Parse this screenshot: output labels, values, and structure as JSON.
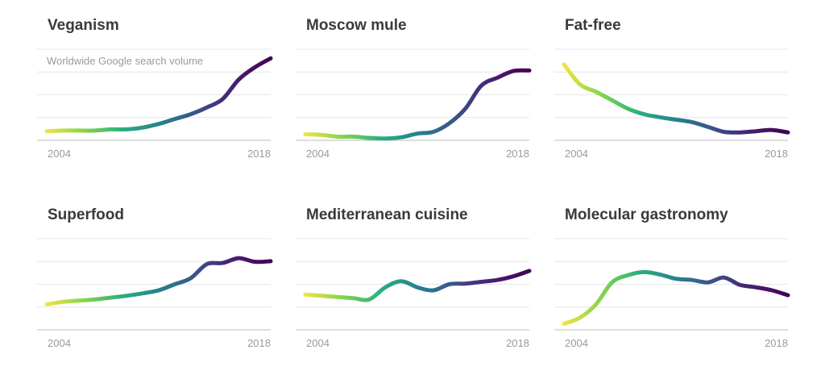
{
  "charts": [
    {
      "title": "Veganism",
      "subtitle": "Worldwide Google search volume",
      "chart_data": {
        "type": "line",
        "x": [
          2004,
          2005,
          2006,
          2007,
          2008,
          2009,
          2010,
          2011,
          2012,
          2013,
          2014,
          2015,
          2016,
          2017,
          2018
        ],
        "values": [
          15,
          16,
          16,
          16,
          18,
          18,
          21,
          27,
          35,
          43,
          54,
          68,
          100,
          120,
          135
        ],
        "ylim": [
          0,
          150
        ],
        "x_tick_labels": [
          "2004",
          "2018"
        ],
        "grid": true,
        "color_scale": [
          "#f0e442",
          "#84d44b",
          "#2ab07f",
          "#26828e",
          "#3b528b",
          "#481f70",
          "#440154"
        ]
      }
    },
    {
      "title": "Moscow mule",
      "subtitle": "",
      "chart_data": {
        "type": "line",
        "x": [
          2004,
          2005,
          2006,
          2007,
          2008,
          2009,
          2010,
          2011,
          2012,
          2013,
          2014,
          2015,
          2016,
          2017,
          2018
        ],
        "values": [
          10,
          9,
          6,
          6,
          4,
          3,
          5,
          11,
          14,
          28,
          52,
          90,
          103,
          114,
          115
        ],
        "ylim": [
          0,
          150
        ],
        "x_tick_labels": [
          "2004",
          "2018"
        ],
        "grid": true,
        "color_scale": [
          "#f0e442",
          "#84d44b",
          "#2ab07f",
          "#26828e",
          "#3b528b",
          "#481f70",
          "#440154"
        ]
      }
    },
    {
      "title": "Fat-free",
      "subtitle": "",
      "chart_data": {
        "type": "line",
        "x": [
          2004,
          2005,
          2006,
          2007,
          2008,
          2009,
          2010,
          2011,
          2012,
          2013,
          2014,
          2015,
          2016,
          2017,
          2018
        ],
        "values": [
          125,
          92,
          80,
          66,
          52,
          43,
          38,
          34,
          30,
          22,
          14,
          13,
          15,
          17,
          13
        ],
        "ylim": [
          0,
          150
        ],
        "x_tick_labels": [
          "2004",
          "2018"
        ],
        "grid": true,
        "color_scale": [
          "#f0e442",
          "#84d44b",
          "#2ab07f",
          "#26828e",
          "#3b528b",
          "#481f70",
          "#440154"
        ]
      }
    },
    {
      "title": "Superfood",
      "subtitle": "",
      "chart_data": {
        "type": "line",
        "x": [
          2004,
          2005,
          2006,
          2007,
          2008,
          2009,
          2010,
          2011,
          2012,
          2013,
          2014,
          2015,
          2016,
          2017,
          2018
        ],
        "values": [
          42,
          46,
          48,
          50,
          53,
          56,
          60,
          65,
          75,
          85,
          108,
          110,
          118,
          112,
          113
        ],
        "ylim": [
          0,
          150
        ],
        "x_tick_labels": [
          "2004",
          "2018"
        ],
        "grid": true,
        "color_scale": [
          "#f0e442",
          "#84d44b",
          "#2ab07f",
          "#26828e",
          "#3b528b",
          "#481f70",
          "#440154"
        ]
      }
    },
    {
      "title": "Mediterranean cuisine",
      "subtitle": "",
      "chart_data": {
        "type": "line",
        "x": [
          2004,
          2005,
          2006,
          2007,
          2008,
          2009,
          2010,
          2011,
          2012,
          2013,
          2014,
          2015,
          2016,
          2017,
          2018
        ],
        "values": [
          58,
          56,
          54,
          52,
          50,
          70,
          80,
          70,
          65,
          75,
          76,
          79,
          82,
          88,
          97
        ],
        "ylim": [
          0,
          150
        ],
        "x_tick_labels": [
          "2004",
          "2018"
        ],
        "grid": true,
        "color_scale": [
          "#f0e442",
          "#84d44b",
          "#2ab07f",
          "#26828e",
          "#3b528b",
          "#481f70",
          "#440154"
        ]
      }
    },
    {
      "title": "Molecular gastronomy",
      "subtitle": "",
      "chart_data": {
        "type": "line",
        "x": [
          2004,
          2005,
          2006,
          2007,
          2008,
          2009,
          2010,
          2011,
          2012,
          2013,
          2014,
          2015,
          2016,
          2017,
          2018
        ],
        "values": [
          10,
          20,
          42,
          78,
          90,
          95,
          91,
          84,
          82,
          78,
          86,
          74,
          70,
          65,
          57
        ],
        "ylim": [
          0,
          150
        ],
        "x_tick_labels": [
          "2004",
          "2018"
        ],
        "grid": true,
        "color_scale": [
          "#f0e442",
          "#84d44b",
          "#2ab07f",
          "#26828e",
          "#3b528b",
          "#481f70",
          "#440154"
        ]
      }
    }
  ]
}
